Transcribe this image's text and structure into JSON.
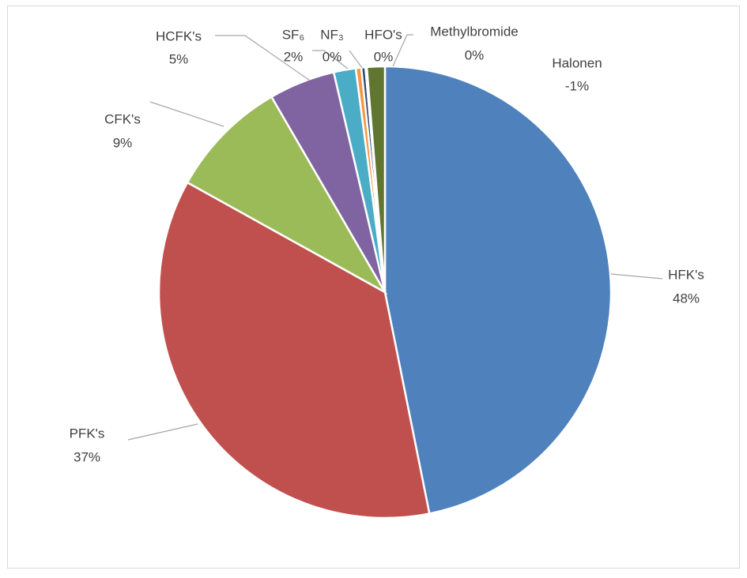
{
  "chart_data": {
    "type": "pie",
    "categories": [
      "HFK's",
      "PFK's",
      "CFK's",
      "HCFK's",
      "SF₆",
      "NF₃",
      "HFO's",
      "Methylbromide",
      "Halonen"
    ],
    "values": [
      47.6,
      36.8,
      8.7,
      4.8,
      1.6,
      0.4,
      0.3,
      0.1,
      -1.3
    ],
    "value_labels": [
      "48%",
      "37%",
      "9%",
      "5%",
      "2%",
      "0%",
      "0%",
      "0%",
      "-1%"
    ],
    "colors": [
      "#4f81bd",
      "#c0504d",
      "#9bbb59",
      "#8064a2",
      "#4bacc6",
      "#f79646",
      "#2c4d75",
      "#772c2a",
      "#5f7530"
    ]
  }
}
